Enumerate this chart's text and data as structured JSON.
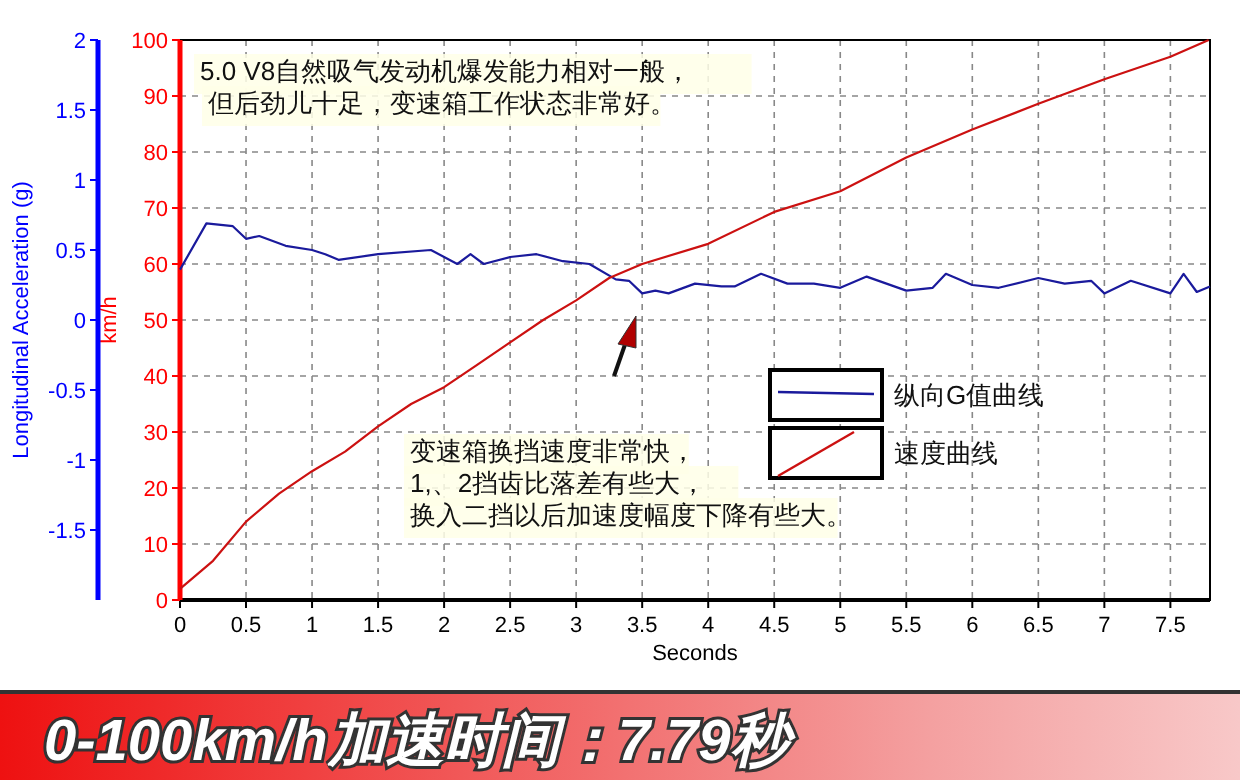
{
  "chart_data": {
    "type": "line",
    "title": "0-100km/h加速时间：7.79秒",
    "xlabel": "Seconds",
    "ylabel": "km/h",
    "y2label": "Longitudinal Acceleration (g)",
    "annotations": [
      "5.0 V8自然吸气发动机爆发能力相对一般，",
      "但后劲儿十足，变速箱工作状态非常好。",
      "变速箱换挡速度非常快，",
      "1,、2挡齿比落差有些大，",
      "换入二挡以后加速度幅度下降有些大。"
    ],
    "xlim": [
      0,
      7.8
    ],
    "xticks": [
      0,
      0.5,
      1,
      1.5,
      2,
      2.5,
      3,
      3.5,
      4,
      4.5,
      5,
      5.5,
      6,
      6.5,
      7,
      7.5
    ],
    "ylim": [
      0,
      100
    ],
    "yticks": [
      0,
      10,
      20,
      30,
      40,
      50,
      60,
      70,
      80,
      90,
      100
    ],
    "y2lim": [
      -2,
      2
    ],
    "y2ticks": [
      2,
      1.5,
      1,
      0.5,
      0,
      -0.5,
      -1,
      -1.5
    ],
    "grid": true,
    "legend": "right",
    "line_style": "solid",
    "marker": "none",
    "series": [
      {
        "name": "纵向G值曲线",
        "color": "#1a1a9c",
        "axis": "y2",
        "x": [
          0,
          0.2,
          0.4,
          0.5,
          0.6,
          0.8,
          1,
          1.1,
          1.2,
          1.5,
          1.9,
          2.1,
          2.2,
          2.3,
          2.5,
          2.7,
          2.9,
          3.1,
          3.3,
          3.4,
          3.5,
          3.6,
          3.7,
          3.9,
          4.1,
          4.2,
          4.4,
          4.6,
          4.8,
          5,
          5.2,
          5.5,
          5.7,
          5.8,
          6,
          6.2,
          6.5,
          6.7,
          6.9,
          7,
          7.2,
          7.5,
          7.6,
          7.7,
          7.8
        ],
        "values": [
          0.36,
          0.69,
          0.67,
          0.58,
          0.6,
          0.53,
          0.5,
          0.47,
          0.43,
          0.47,
          0.5,
          0.4,
          0.47,
          0.4,
          0.45,
          0.47,
          0.42,
          0.4,
          0.29,
          0.28,
          0.19,
          0.21,
          0.19,
          0.26,
          0.24,
          0.24,
          0.33,
          0.26,
          0.26,
          0.23,
          0.31,
          0.21,
          0.23,
          0.33,
          0.25,
          0.23,
          0.3,
          0.26,
          0.28,
          0.19,
          0.28,
          0.19,
          0.33,
          0.2,
          0.24
        ]
      },
      {
        "name": "速度曲线",
        "color": "#cc1111",
        "x": [
          0,
          0.25,
          0.5,
          0.75,
          1,
          1.25,
          1.5,
          1.75,
          2,
          2.25,
          2.5,
          2.75,
          3,
          3.25,
          3.5,
          4,
          4.5,
          5,
          5.5,
          6,
          6.5,
          7,
          7.5,
          7.79
        ],
        "values": [
          2,
          7,
          14,
          19,
          23,
          26.5,
          31,
          35,
          38,
          42,
          46,
          50,
          53.5,
          57.5,
          60,
          63.6,
          69.3,
          73,
          79,
          84,
          88.6,
          93,
          97,
          100
        ]
      }
    ]
  }
}
